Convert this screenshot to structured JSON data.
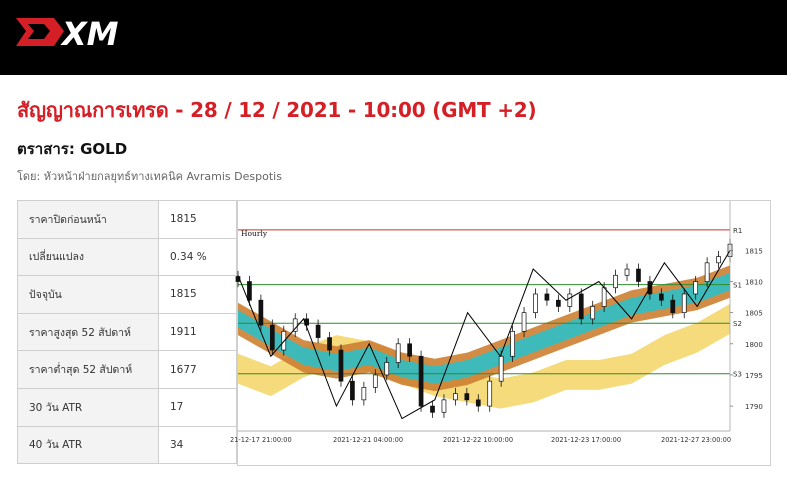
{
  "header": {
    "logo_text": "XM"
  },
  "title": "สัญญาณการเทรด - 28 / 12 / 2021 - 10:00 (GMT +2)",
  "instrument": "ตราสาร: GOLD",
  "author": "โดย: หัวหน้าฝ่ายกลยุทธ์ทางเทคนิค Avramis Despotis",
  "stats": [
    {
      "label": "ราคาปิดก่อนหน้า",
      "value": "1815"
    },
    {
      "label": "เปลี่ยนแปลง",
      "value": "0.34 %"
    },
    {
      "label": "ปัจจุบัน",
      "value": "1815"
    },
    {
      "label": "ราคาสูงสุด 52 สัปดาห์",
      "value": "1911"
    },
    {
      "label": "ราคาต่ำสุด 52 สัปดาห์",
      "value": "1677"
    },
    {
      "label": "30 วัน ATR",
      "value": "17"
    },
    {
      "label": "40 วัน ATR",
      "value": "34"
    }
  ],
  "colors": {
    "brand_red": "#d51f26",
    "resistance": "#c0392b",
    "support": "#2e8b2e",
    "band_inner": "#2fbfc6",
    "band_outer": "#cd7f32",
    "band_slow": "#f5d76e"
  },
  "chart_data": {
    "type": "candlestick",
    "timeframe": "Hourly",
    "y_ticks": [
      1790,
      1795,
      1800,
      1805,
      1810,
      1815
    ],
    "ylim": [
      1786,
      1821
    ],
    "x_labels": [
      "21-12-17 21:00:00",
      "2021-12-21 04:00:00",
      "2021-12-22 10:00:00",
      "2021-12-23 17:00:00",
      "2021-12-27 23:00:00"
    ],
    "levels": [
      {
        "name": "R1",
        "value": 1818.3,
        "color": "#c0392b"
      },
      {
        "name": "S1",
        "value": 1809.5,
        "color": "#2e8b2e"
      },
      {
        "name": "S2",
        "value": 1803.3,
        "color": "#2e8b2e"
      },
      {
        "name": "S3",
        "value": 1795.2,
        "color": "#2e8b2e"
      }
    ],
    "zigzag": [
      1811,
      1798,
      1804,
      1790,
      1800,
      1788,
      1791,
      1805,
      1798,
      1812,
      1807,
      1810,
      1804,
      1813,
      1806,
      1815
    ],
    "fast_band": [
      1804,
      1801,
      1798,
      1797,
      1798,
      1796,
      1795,
      1796,
      1798,
      1800,
      1802,
      1804,
      1806,
      1807,
      1808,
      1810
    ],
    "slow_band": [
      1796,
      1794,
      1797,
      1799,
      1798,
      1796,
      1794,
      1793,
      1792,
      1793,
      1795,
      1795,
      1796,
      1799,
      1801,
      1804
    ],
    "closes": [
      1810,
      1807,
      1803,
      1799,
      1802,
      1804,
      1803,
      1801,
      1799,
      1794,
      1791,
      1793,
      1795,
      1797,
      1800,
      1798,
      1790,
      1789,
      1791,
      1792,
      1791,
      1790,
      1794,
      1798,
      1802,
      1805,
      1808,
      1807,
      1806,
      1808,
      1804,
      1806,
      1809,
      1811,
      1812,
      1810,
      1808,
      1807,
      1805,
      1808,
      1810,
      1813,
      1814,
      1816
    ]
  }
}
